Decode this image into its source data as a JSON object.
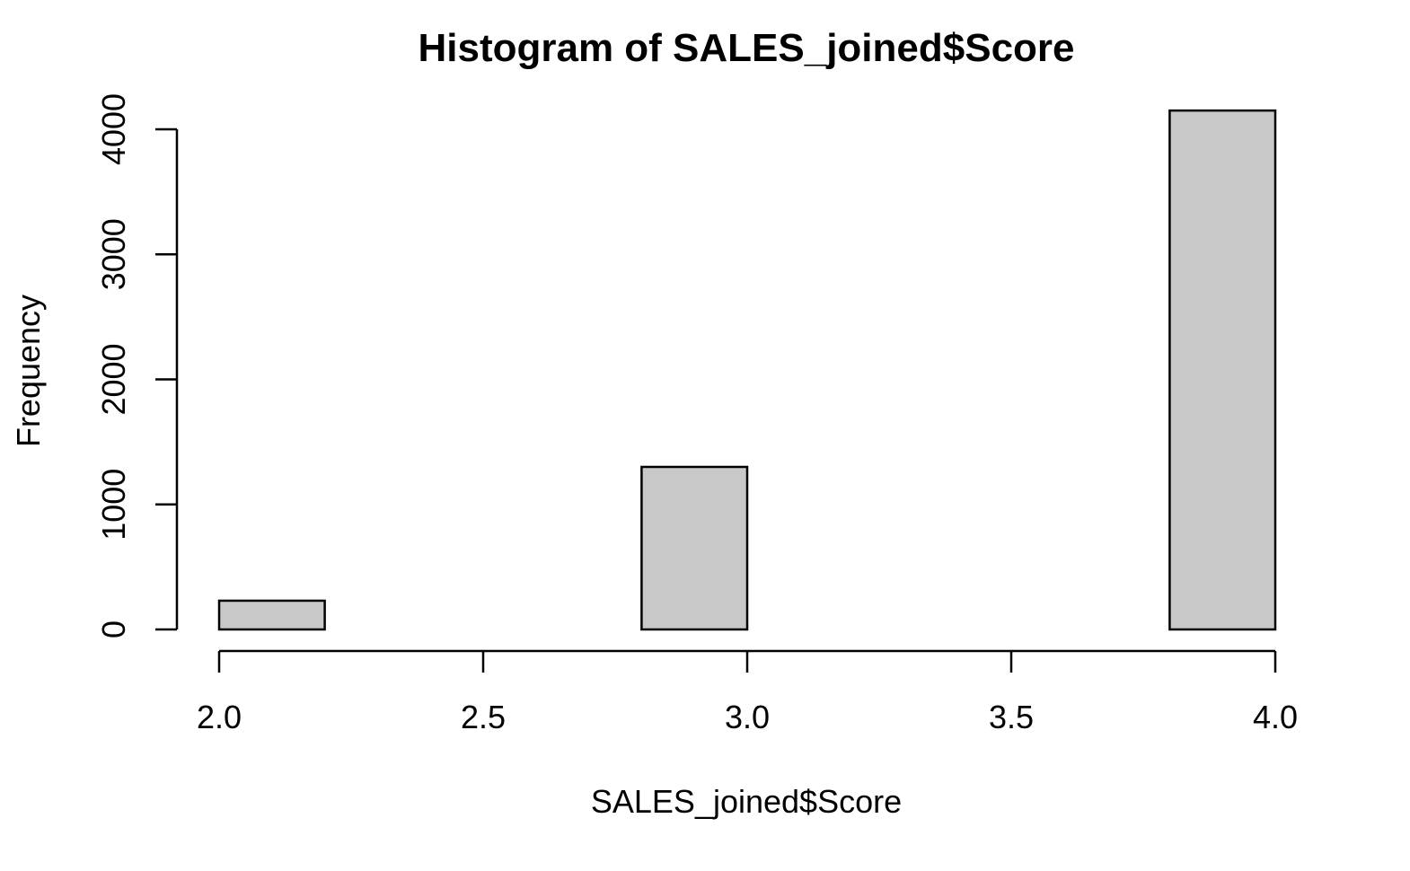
{
  "chart_data": {
    "type": "bar",
    "title": "Histogram of SALES_joined$Score",
    "xlabel": "SALES_joined$Score",
    "ylabel": "Frequency",
    "bins": [
      {
        "x0": 2.0,
        "x1": 2.2,
        "count": 230
      },
      {
        "x0": 2.2,
        "x1": 2.4,
        "count": 0
      },
      {
        "x0": 2.4,
        "x1": 2.6,
        "count": 0
      },
      {
        "x0": 2.6,
        "x1": 2.8,
        "count": 0
      },
      {
        "x0": 2.8,
        "x1": 3.0,
        "count": 1300
      },
      {
        "x0": 3.0,
        "x1": 3.2,
        "count": 0
      },
      {
        "x0": 3.2,
        "x1": 3.4,
        "count": 0
      },
      {
        "x0": 3.4,
        "x1": 3.6,
        "count": 0
      },
      {
        "x0": 3.6,
        "x1": 3.8,
        "count": 0
      },
      {
        "x0": 3.8,
        "x1": 4.0,
        "count": 4150
      }
    ],
    "xlim": [
      2.0,
      4.0
    ],
    "ylim": [
      0,
      4000
    ],
    "x_ticks": [
      2.0,
      2.5,
      3.0,
      3.5,
      4.0
    ],
    "x_tick_labels": [
      "2.0",
      "2.5",
      "3.0",
      "3.5",
      "4.0"
    ],
    "y_ticks": [
      0,
      1000,
      2000,
      3000,
      4000
    ],
    "y_tick_labels": [
      "0",
      "1000",
      "2000",
      "3000",
      "4000"
    ],
    "grid": false,
    "legend": "none",
    "colors": {
      "bar_fill": "#c8c8c8",
      "bar_stroke": "#000000",
      "axis": "#000000"
    }
  }
}
